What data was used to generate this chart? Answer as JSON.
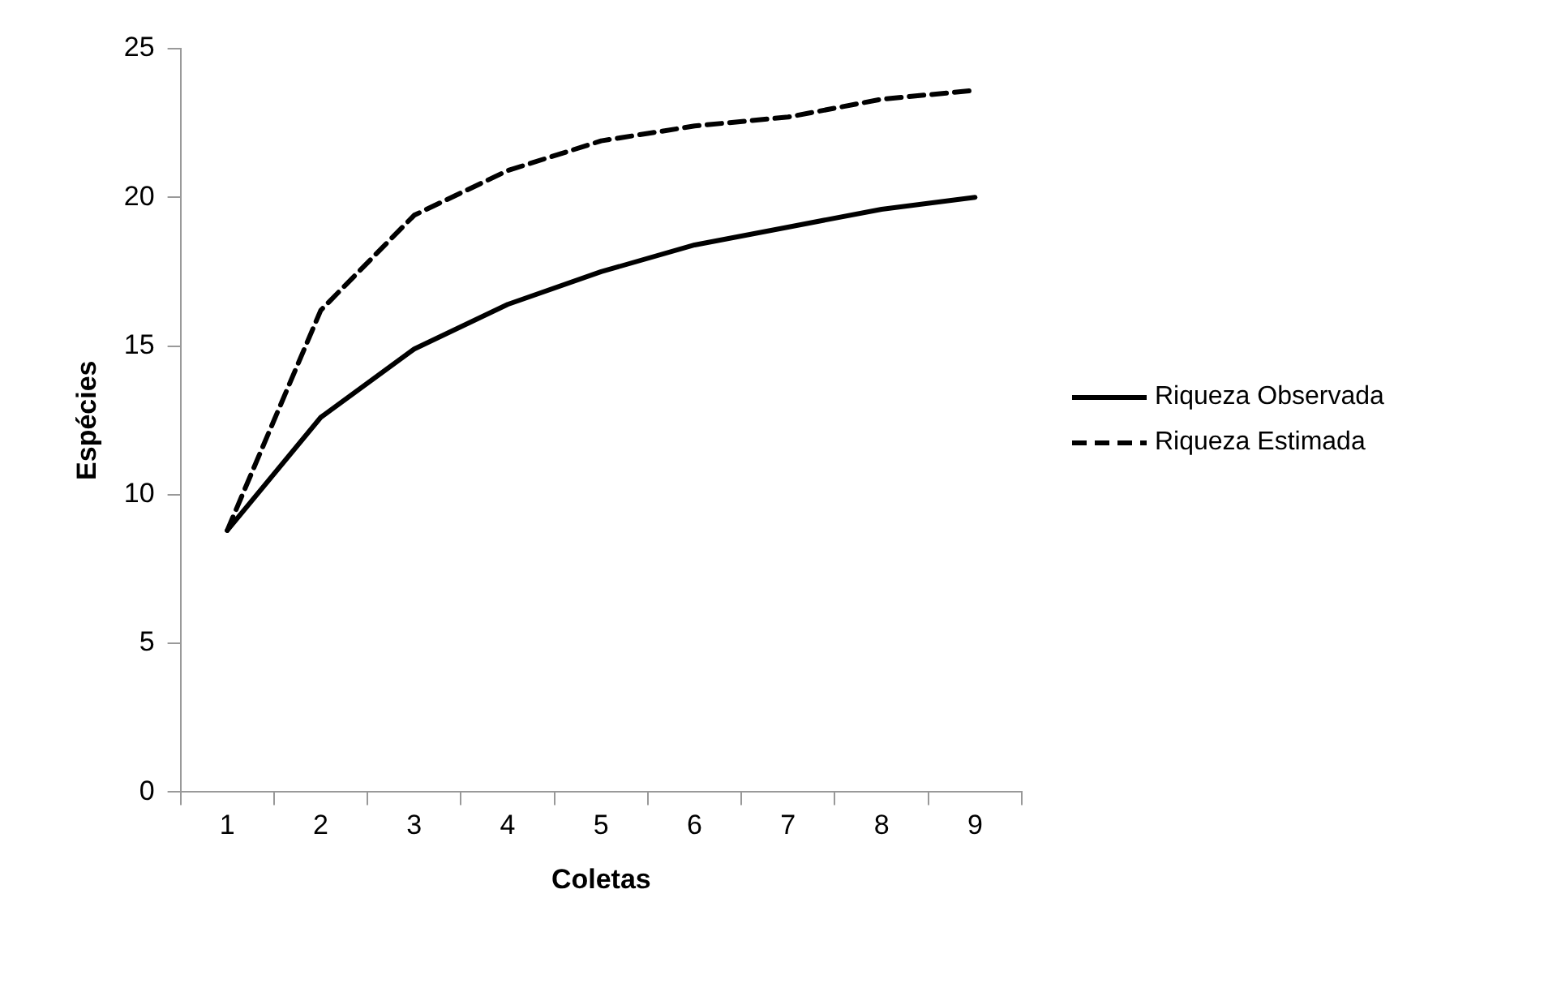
{
  "chart_data": {
    "type": "line",
    "xlabel": "Coletas",
    "ylabel": "Espécies",
    "categories": [
      "1",
      "2",
      "3",
      "4",
      "5",
      "6",
      "7",
      "8",
      "9"
    ],
    "series": [
      {
        "name": "Riqueza Observada",
        "color": "#000000",
        "line_style": "solid",
        "values": [
          8.8,
          12.6,
          14.9,
          16.4,
          17.5,
          18.4,
          19.0,
          19.6,
          20.0
        ]
      },
      {
        "name": "Riqueza Estimada",
        "color": "#000000",
        "line_style": "dashed",
        "values": [
          8.8,
          16.2,
          19.4,
          20.9,
          21.9,
          22.4,
          22.7,
          23.3,
          23.6
        ]
      }
    ],
    "ylim": [
      0,
      25
    ],
    "yticks": [
      0,
      5,
      10,
      15,
      20,
      25
    ],
    "grid": false,
    "legend": "right",
    "marker": "none"
  }
}
